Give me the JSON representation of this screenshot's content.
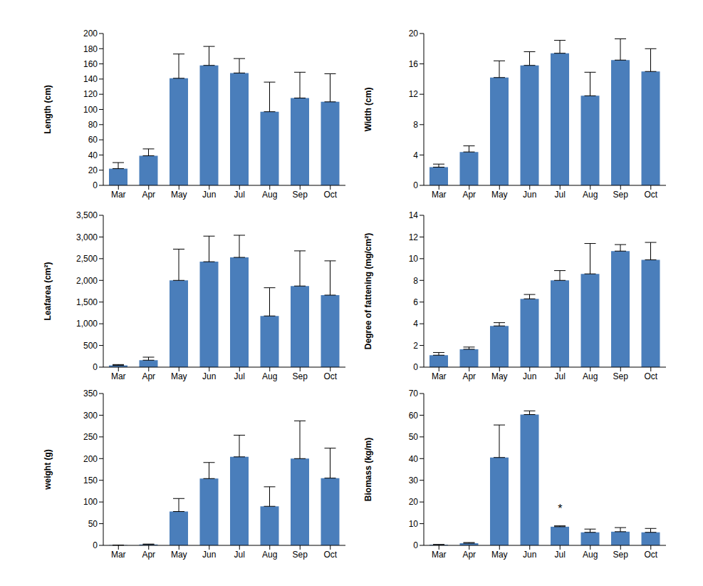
{
  "chart_data": [
    {
      "type": "bar",
      "y_label": "Length (cm)",
      "categories": [
        "Mar",
        "Apr",
        "May",
        "Jun",
        "Jul",
        "Aug",
        "Sep",
        "Oct"
      ],
      "values": [
        22,
        39,
        141,
        158,
        148,
        97,
        115,
        110
      ],
      "errors": [
        8,
        9,
        32,
        25,
        19,
        39,
        34,
        37
      ],
      "color": "#4a7ebb",
      "ylim": [
        0,
        200
      ],
      "yticks": [
        0,
        20,
        40,
        60,
        80,
        100,
        120,
        140,
        160,
        180,
        200
      ],
      "grid": false
    },
    {
      "type": "bar",
      "y_label": "Width (cm)",
      "categories": [
        "Mar",
        "Apr",
        "May",
        "Jun",
        "Jul",
        "Aug",
        "Sep",
        "Oct"
      ],
      "values": [
        2.4,
        4.4,
        14.2,
        15.8,
        17.4,
        11.8,
        16.5,
        15
      ],
      "errors": [
        0.4,
        0.8,
        2.2,
        1.8,
        1.7,
        3.1,
        2.8,
        3
      ],
      "color": "#4a7ebb",
      "ylim": [
        0,
        20
      ],
      "yticks": [
        0,
        4,
        8,
        12,
        16,
        20
      ],
      "grid": false
    },
    {
      "type": "bar",
      "y_label": "Leafarea (cm²)",
      "categories": [
        "Mar",
        "Apr",
        "May",
        "Jun",
        "Jul",
        "Aug",
        "Sep",
        "Oct"
      ],
      "values": [
        40,
        160,
        2000,
        2430,
        2530,
        1180,
        1870,
        1660
      ],
      "errors": [
        20,
        70,
        720,
        590,
        510,
        650,
        810,
        790
      ],
      "color": "#4a7ebb",
      "ylim": [
        0,
        3500
      ],
      "yticks": [
        0,
        500,
        {
          "value": 1000,
          "label": "1,000"
        },
        {
          "value": 1500,
          "label": "1,500"
        },
        {
          "value": 2000,
          "label": "2,000"
        },
        {
          "value": 2500,
          "label": "2,500"
        },
        {
          "value": 3000,
          "label": "3,000"
        },
        {
          "value": 3500,
          "label": "3,500"
        }
      ],
      "grid": false
    },
    {
      "type": "bar",
      "y_label": "Degree of fattening (mg/cm²)",
      "categories": [
        "Mar",
        "Apr",
        "May",
        "Jun",
        "Jul",
        "Aug",
        "Sep",
        "Oct"
      ],
      "values": [
        1.1,
        1.65,
        3.8,
        6.3,
        8.0,
        8.6,
        10.7,
        9.9
      ],
      "errors": [
        0.25,
        0.2,
        0.3,
        0.4,
        0.9,
        2.8,
        0.6,
        1.6
      ],
      "color": "#4a7ebb",
      "ylim": [
        0,
        14
      ],
      "yticks": [
        0,
        2,
        4,
        6,
        8,
        10,
        12,
        14
      ],
      "grid": false
    },
    {
      "type": "bar",
      "y_label": "weight (g)",
      "categories": [
        "Mar",
        "Apr",
        "May",
        "Jun",
        "Jul",
        "Aug",
        "Sep",
        "Oct"
      ],
      "values": [
        0.5,
        2,
        78,
        154,
        204,
        90,
        200,
        155
      ],
      "errors": [
        0.3,
        1,
        30,
        37,
        50,
        45,
        87,
        69
      ],
      "color": "#4a7ebb",
      "ylim": [
        0,
        350
      ],
      "yticks": [
        0,
        50,
        100,
        150,
        200,
        250,
        300,
        350
      ],
      "grid": false
    },
    {
      "type": "bar",
      "y_label": "Biomass (kg/m)",
      "categories": [
        "Mar",
        "Apr",
        "May",
        "Jun",
        "Jul",
        "Aug",
        "Sep",
        "Oct"
      ],
      "values": [
        0.3,
        1.0,
        40.5,
        60.3,
        8.6,
        6,
        6.3,
        6
      ],
      "errors": [
        0.1,
        0.3,
        15,
        1.7,
        0.4,
        1.5,
        1.9,
        1.8
      ],
      "color": "#4a7ebb",
      "ylim": [
        0,
        70
      ],
      "yticks": [
        0,
        10,
        20,
        30,
        40,
        50,
        60,
        70
      ],
      "grid": false,
      "annotations": [
        {
          "text": "*",
          "x": "Jul"
        }
      ]
    }
  ]
}
